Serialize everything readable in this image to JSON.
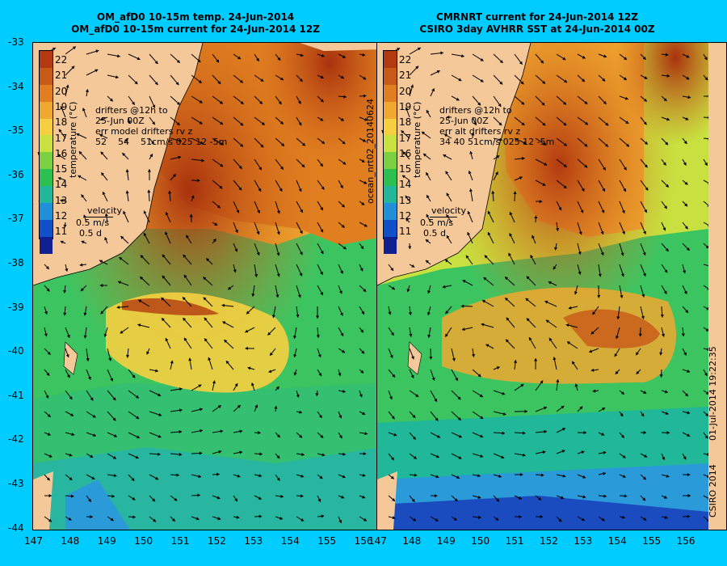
{
  "left_panel": {
    "title_line1": "OM_afD0 10-15m temp. 24-Jun-2014",
    "title_line2": "OM_afD0 10-15m current for 24-Jun-2014 12Z",
    "drifter_note": "drifters @12h to\n25-Jun 00Z\nerr model drifters rv z\n52    54    51cm/s 025 12 -5m",
    "velocity_label": "velocity",
    "velocity_scale": "0.5 m/s",
    "velocity_days": "0.5 d"
  },
  "right_panel": {
    "title_line1": "CMRNRT current for 24-Jun-2014 12Z",
    "title_line2": "CSIRO 3day AVHRR SST at 24-Jun-2014 00Z",
    "drifter_note": "drifters @12h to\n25-Jun 00Z\nerr alt drifters rv z\n34 40 51cm/s 025 12 -5m",
    "velocity_label": "velocity",
    "velocity_scale": "0.5 m/s",
    "velocity_days": "0.5 d",
    "side_label": "ocean_nrt02_20140624"
  },
  "colorbar": {
    "title": "temperature (°C)",
    "ticks": [
      "22",
      "21",
      "20",
      "19",
      "18",
      "17",
      "16",
      "15",
      "14",
      "13",
      "12",
      "11"
    ],
    "colors": [
      "#b33a10",
      "#c85a18",
      "#e07e20",
      "#f0a830",
      "#f6cf40",
      "#c8e040",
      "#7ad040",
      "#2cc050",
      "#20b898",
      "#2090d8",
      "#1050c8",
      "#102090"
    ]
  },
  "lat_labels": [
    "-33",
    "-34",
    "-35",
    "-36",
    "-37",
    "-38",
    "-39",
    "-40",
    "-41",
    "-42",
    "-43",
    "-44"
  ],
  "lon_labels": [
    "147",
    "148",
    "149",
    "150",
    "151",
    "152",
    "153",
    "154",
    "155",
    "156"
  ],
  "footer": {
    "timestamp": "01-Jul-2014 19:22:35",
    "copyright": "CSIRO 2014"
  }
}
